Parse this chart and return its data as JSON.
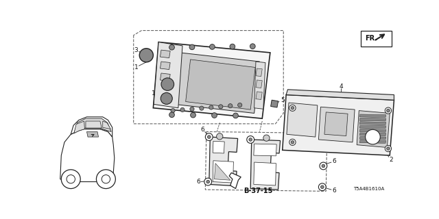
{
  "bg_color": "#ffffff",
  "fig_width": 6.4,
  "fig_height": 3.2,
  "dpi": 100,
  "part_label": "T5A4B1610A",
  "diagram_ref": "B-37-15",
  "line_color": "#222222",
  "dashed_color": "#666666",
  "text_color": "#111111",
  "gray_fill": "#e8e8e8",
  "dark_fill": "#888888",
  "mid_fill": "#cccccc"
}
